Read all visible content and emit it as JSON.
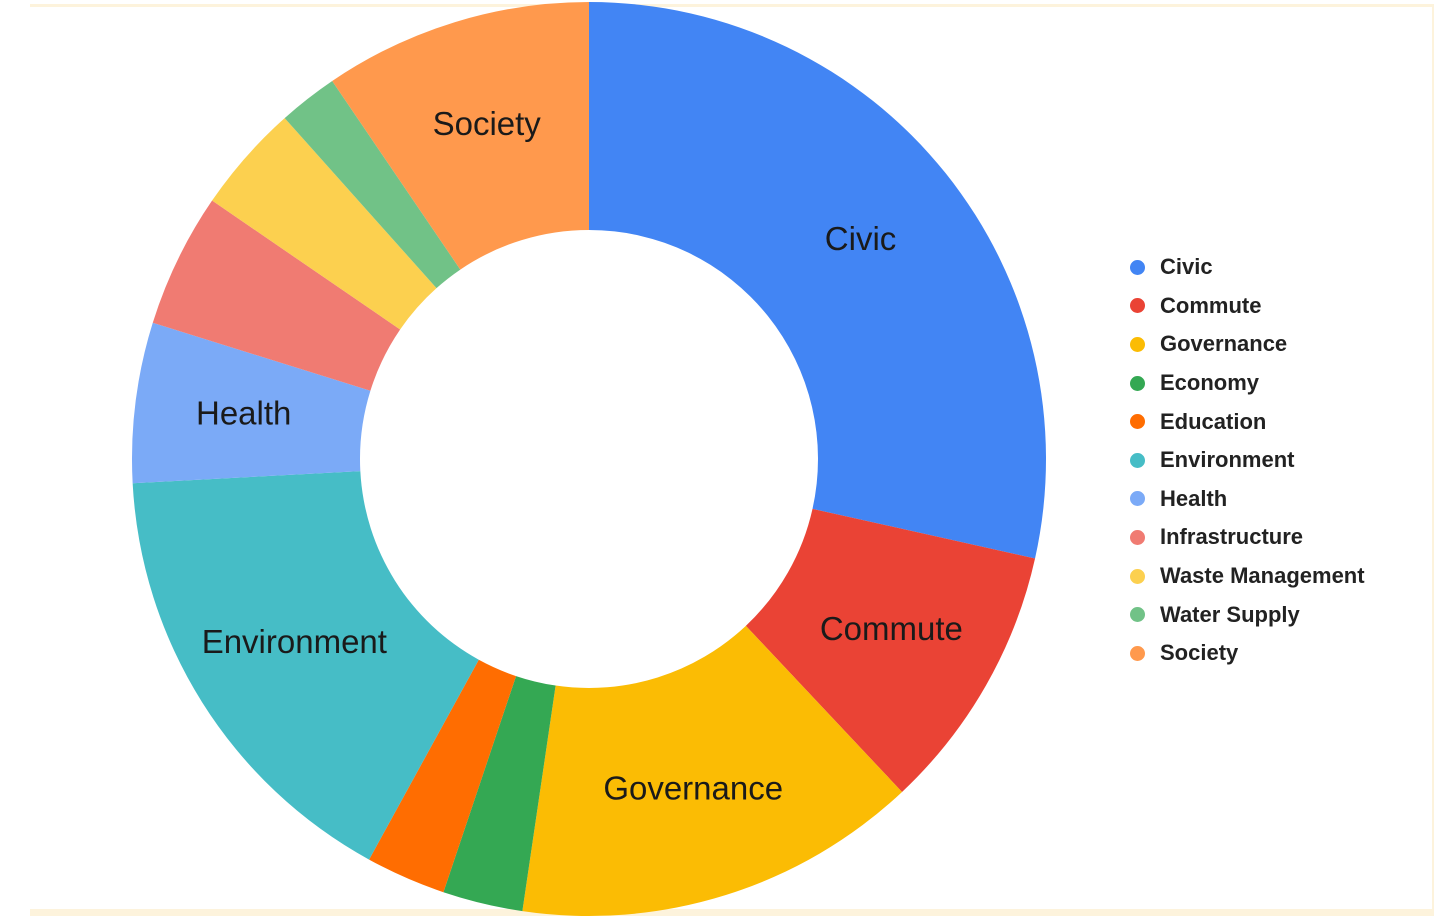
{
  "chart_data": {
    "type": "pie",
    "style": "donut",
    "title": "",
    "legend_position": "right",
    "unit": "percent (estimated)",
    "categories": [
      "Civic",
      "Commute",
      "Governance",
      "Economy",
      "Education",
      "Environment",
      "Health",
      "Infrastructure",
      "Waste Management",
      "Water Supply",
      "Society"
    ],
    "values": [
      31.2,
      10.4,
      15.7,
      3.1,
      3.1,
      17.7,
      6.2,
      5.2,
      4.2,
      2.3,
      10.4
    ],
    "colors": [
      "#4285f4",
      "#ea4335",
      "#fbbc04",
      "#34a853",
      "#ff6d01",
      "#46bdc6",
      "#7baaf7",
      "#f07b72",
      "#fcd04f",
      "#71c287",
      "#ff994d"
    ],
    "slice_labels_shown": [
      "Civic",
      "Commute",
      "Governance",
      "Environment",
      "Health",
      "Society"
    ]
  }
}
